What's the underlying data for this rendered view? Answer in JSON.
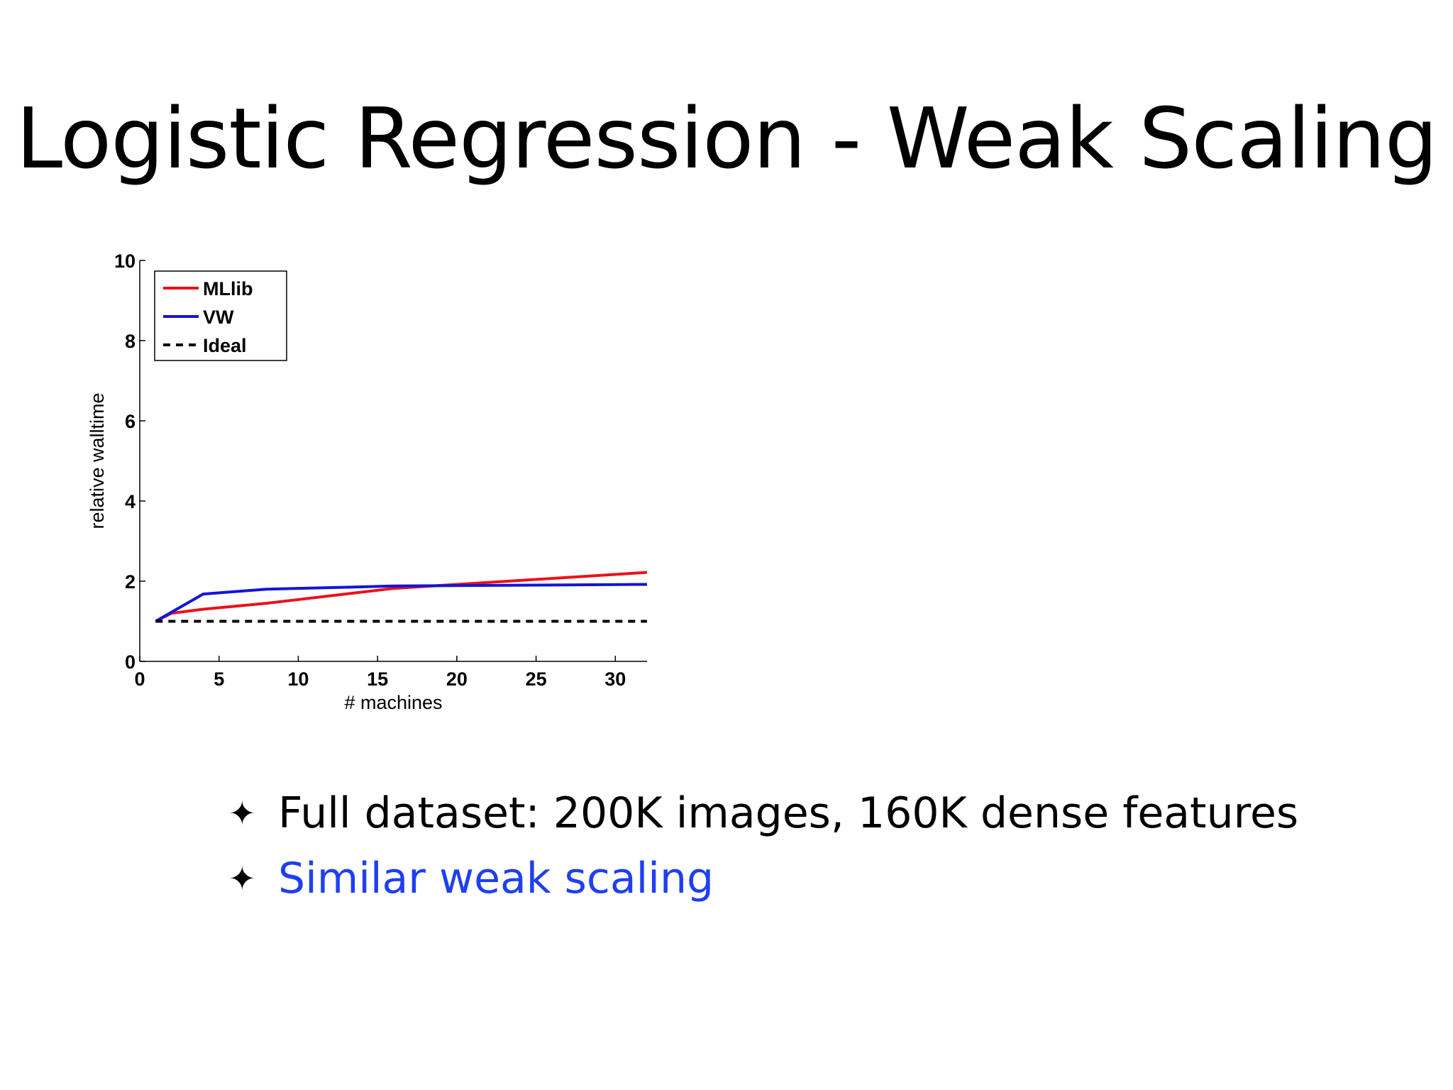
{
  "slide": {
    "title": "Logistic Regression - Weak Scaling",
    "bullets": [
      {
        "text": "Full dataset: 200K images, 160K dense features",
        "color": "#000000"
      },
      {
        "text": "Similar weak scaling",
        "color": "#1f3ff0"
      }
    ],
    "bullet_icon": "four-pointed-star-icon",
    "bullet_glyph": "✦"
  },
  "chart_data": {
    "type": "line",
    "title": "",
    "xlabel": "# machines",
    "ylabel": "relative walltime",
    "xlim": [
      0,
      32
    ],
    "ylim": [
      0,
      10
    ],
    "xticks": [
      0,
      5,
      10,
      15,
      20,
      25,
      30
    ],
    "yticks": [
      0,
      2,
      4,
      6,
      8,
      10
    ],
    "grid": false,
    "legend": "top-left",
    "series": [
      {
        "name": "MLlib",
        "color": "#e8121b",
        "style": "solid",
        "x": [
          1,
          2,
          4,
          8,
          16,
          32
        ],
        "y": [
          1.0,
          1.2,
          1.3,
          1.45,
          1.82,
          2.22
        ]
      },
      {
        "name": "VW",
        "color": "#1414d8",
        "style": "solid",
        "x": [
          1,
          4,
          8,
          16,
          32
        ],
        "y": [
          1.0,
          1.68,
          1.8,
          1.88,
          1.92
        ]
      },
      {
        "name": "Ideal",
        "color": "#000000",
        "style": "dashed",
        "x": [
          1,
          32
        ],
        "y": [
          1.0,
          1.0
        ]
      }
    ]
  }
}
